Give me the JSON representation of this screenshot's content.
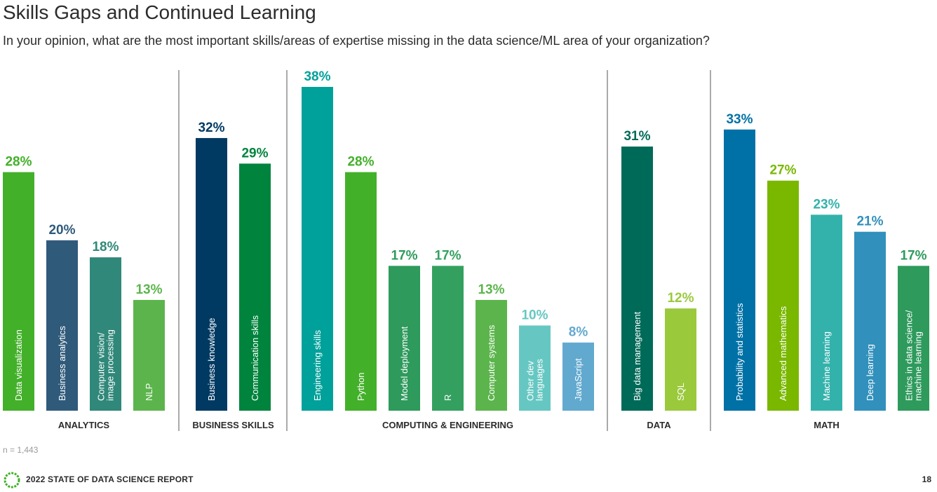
{
  "header": {
    "title": "Skills Gaps and Continued Learning",
    "subtitle": "In your opinion, what are the most important skills/areas of expertise missing in the data science/ML area of your organization?"
  },
  "footer": {
    "sample_size": "n = 1,443",
    "report_name": "2022 STATE OF DATA SCIENCE REPORT",
    "page_number": "18"
  },
  "chart_data": {
    "type": "bar",
    "title": "Skills Gaps and Continued Learning",
    "xlabel": "",
    "ylabel": "",
    "ylim": [
      0,
      38
    ],
    "groups": [
      {
        "name": "ANALYTICS",
        "bars": [
          {
            "label": "Data visualization",
            "value": 28,
            "value_label": "28%",
            "color": "#43b02a",
            "value_color": "#43b02a"
          },
          {
            "label": "Business analytics",
            "value": 20,
            "value_label": "20%",
            "color": "#305a7a",
            "value_color": "#305a7a"
          },
          {
            "label": "Computer vision/\nimage processing",
            "value": 18,
            "value_label": "18%",
            "color": "#30887a",
            "value_color": "#30887a"
          },
          {
            "label": "NLP",
            "value": 13,
            "value_label": "13%",
            "color": "#5cb54c",
            "value_color": "#5cb54c"
          }
        ]
      },
      {
        "name": "BUSINESS SKILLS",
        "bars": [
          {
            "label": "Business knowledge",
            "value": 32,
            "value_label": "32%",
            "color": "#003a63",
            "value_color": "#003a63"
          },
          {
            "label": "Communication skills",
            "value": 29,
            "value_label": "29%",
            "color": "#00843d",
            "value_color": "#00843d"
          }
        ]
      },
      {
        "name": "COMPUTING & ENGINEERING",
        "bars": [
          {
            "label": "Engineering skills",
            "value": 38,
            "value_label": "38%",
            "color": "#00a19a",
            "value_color": "#00a19a"
          },
          {
            "label": "Python",
            "value": 28,
            "value_label": "28%",
            "color": "#43b02a",
            "value_color": "#43b02a"
          },
          {
            "label": "Model deployment",
            "value": 17,
            "value_label": "17%",
            "color": "#2e9a5c",
            "value_color": "#2e9a5c"
          },
          {
            "label": "R",
            "value": 17,
            "value_label": "17%",
            "color": "#34a060",
            "value_color": "#34a060"
          },
          {
            "label": "Computer systems",
            "value": 13,
            "value_label": "13%",
            "color": "#5cb54c",
            "value_color": "#5cb54c"
          },
          {
            "label": "Other dev\nlanguages",
            "value": 10,
            "value_label": "10%",
            "color": "#66c7c2",
            "value_color": "#66c7c2"
          },
          {
            "label": "JavaScript",
            "value": 8,
            "value_label": "8%",
            "color": "#62a9cf",
            "value_color": "#62a9cf"
          }
        ]
      },
      {
        "name": "DATA",
        "bars": [
          {
            "label": "Big data management",
            "value": 31,
            "value_label": "31%",
            "color": "#006a59",
            "value_color": "#006a59"
          },
          {
            "label": "SQL",
            "value": 12,
            "value_label": "12%",
            "color": "#9ac93c",
            "value_color": "#9ac93c"
          }
        ]
      },
      {
        "name": "MATH",
        "bars": [
          {
            "label": "Probability and statistics",
            "value": 33,
            "value_label": "33%",
            "color": "#0071a6",
            "value_color": "#0071a6"
          },
          {
            "label": "Advanced mathematics",
            "value": 27,
            "value_label": "27%",
            "color": "#7ab800",
            "value_color": "#7ab800"
          },
          {
            "label": "Machine learning",
            "value": 23,
            "value_label": "23%",
            "color": "#33b2ac",
            "value_color": "#33b2ac"
          },
          {
            "label": "Deep learning",
            "value": 21,
            "value_label": "21%",
            "color": "#3190bc",
            "value_color": "#3190bc"
          },
          {
            "label": "Ethics in data science/\nmachine learning",
            "value": 17,
            "value_label": "17%",
            "color": "#2e9a5c",
            "value_color": "#2e9a5c"
          }
        ]
      }
    ]
  }
}
